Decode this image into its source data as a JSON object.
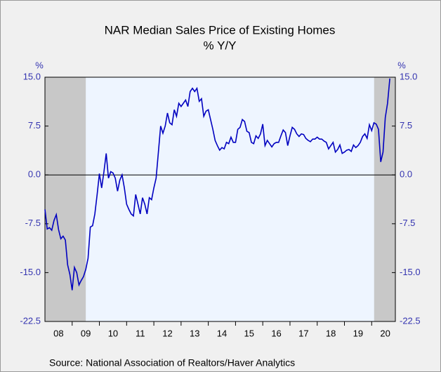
{
  "chart_data": {
    "type": "line",
    "title": "NAR Median Sales Price of Existing Homes",
    "subtitle": "% Y/Y",
    "y_unit": "%",
    "source": "Source:  National Association of Realtors/Haver Analytics",
    "color": "#0000c0",
    "x": [
      2008,
      2008.083,
      2008.167,
      2008.25,
      2008.333,
      2008.417,
      2008.5,
      2008.583,
      2008.667,
      2008.75,
      2008.833,
      2008.917,
      2009,
      2009.083,
      2009.167,
      2009.25,
      2009.333,
      2009.417,
      2009.5,
      2009.583,
      2009.667,
      2009.75,
      2009.833,
      2009.917,
      2010,
      2010.083,
      2010.167,
      2010.25,
      2010.333,
      2010.417,
      2010.5,
      2010.583,
      2010.667,
      2010.75,
      2010.833,
      2010.917,
      2011,
      2011.083,
      2011.167,
      2011.25,
      2011.333,
      2011.417,
      2011.5,
      2011.583,
      2011.667,
      2011.75,
      2011.833,
      2011.917,
      2012,
      2012.083,
      2012.167,
      2012.25,
      2012.333,
      2012.417,
      2012.5,
      2012.583,
      2012.667,
      2012.75,
      2012.833,
      2012.917,
      2013,
      2013.083,
      2013.167,
      2013.25,
      2013.333,
      2013.417,
      2013.5,
      2013.583,
      2013.667,
      2013.75,
      2013.833,
      2013.917,
      2014,
      2014.083,
      2014.167,
      2014.25,
      2014.333,
      2014.417,
      2014.5,
      2014.583,
      2014.667,
      2014.75,
      2014.833,
      2014.917,
      2015,
      2015.083,
      2015.167,
      2015.25,
      2015.333,
      2015.417,
      2015.5,
      2015.583,
      2015.667,
      2015.75,
      2015.833,
      2015.917,
      2016,
      2016.083,
      2016.167,
      2016.25,
      2016.333,
      2016.417,
      2016.5,
      2016.583,
      2016.667,
      2016.75,
      2016.833,
      2016.917,
      2017,
      2017.083,
      2017.167,
      2017.25,
      2017.333,
      2017.417,
      2017.5,
      2017.583,
      2017.667,
      2017.75,
      2017.833,
      2017.917,
      2018,
      2018.083,
      2018.167,
      2018.25,
      2018.333,
      2018.417,
      2018.5,
      2018.583,
      2018.667,
      2018.75,
      2018.833,
      2018.917,
      2019,
      2019.083,
      2019.167,
      2019.25,
      2019.333,
      2019.417,
      2019.5,
      2019.583,
      2019.667,
      2019.75,
      2019.833,
      2019.917,
      2020,
      2020.083,
      2020.167,
      2020.25,
      2020.333,
      2020.417,
      2020.5,
      2020.583,
      2020.667
    ],
    "values": [
      -5.3,
      -8.3,
      -8.1,
      -8.5,
      -7.0,
      -6.1,
      -8.4,
      -9.8,
      -9.4,
      -10.0,
      -13.8,
      -15.3,
      -17.7,
      -14.2,
      -15.0,
      -16.9,
      -16.2,
      -15.6,
      -14.5,
      -12.8,
      -8.0,
      -7.8,
      -6.0,
      -3.0,
      0.2,
      -2.0,
      0.5,
      3.3,
      -0.5,
      0.5,
      0.3,
      -0.5,
      -2.5,
      -0.8,
      0.0,
      -2.0,
      -4.5,
      -5.3,
      -6.0,
      -6.3,
      -3.0,
      -4.5,
      -6.0,
      -3.5,
      -4.5,
      -6.0,
      -3.5,
      -3.8,
      -2.0,
      -0.5,
      3.5,
      7.5,
      6.4,
      7.5,
      9.5,
      8.0,
      7.7,
      10.0,
      9.0,
      11.0,
      10.5,
      11.0,
      11.5,
      10.5,
      12.8,
      13.3,
      12.8,
      13.3,
      11.3,
      11.7,
      9.0,
      9.8,
      10.0,
      8.5,
      7.0,
      5.3,
      4.5,
      3.8,
      4.2,
      4.0,
      5.0,
      4.8,
      5.8,
      5.0,
      5.0,
      7.0,
      7.3,
      8.5,
      8.2,
      6.7,
      6.5,
      5.0,
      4.8,
      6.0,
      5.6,
      6.3,
      7.8,
      4.5,
      5.3,
      4.8,
      4.3,
      4.8,
      5.0,
      5.0,
      6.0,
      6.9,
      6.5,
      4.5,
      6.0,
      7.3,
      7.0,
      6.3,
      5.9,
      6.3,
      6.2,
      5.6,
      5.3,
      5.1,
      5.5,
      5.5,
      5.8,
      5.5,
      5.5,
      5.2,
      5.0,
      4.0,
      4.5,
      5.0,
      3.5,
      3.9,
      4.6,
      3.3,
      3.5,
      3.8,
      3.9,
      3.6,
      4.6,
      4.2,
      4.5,
      5.0,
      5.9,
      6.3,
      5.6,
      7.7,
      6.8,
      8.0,
      7.8,
      7.0,
      2.0,
      3.5,
      8.8,
      11.0,
      14.8
    ],
    "xlim": [
      2008,
      2020.87
    ],
    "xticks": [
      {
        "value": 2008.5,
        "label": "08"
      },
      {
        "value": 2009.5,
        "label": "09"
      },
      {
        "value": 2010.5,
        "label": "10"
      },
      {
        "value": 2011.5,
        "label": "11"
      },
      {
        "value": 2012.5,
        "label": "12"
      },
      {
        "value": 2013.5,
        "label": "13"
      },
      {
        "value": 2014.5,
        "label": "14"
      },
      {
        "value": 2015.5,
        "label": "15"
      },
      {
        "value": 2016.5,
        "label": "16"
      },
      {
        "value": 2017.5,
        "label": "17"
      },
      {
        "value": 2018.5,
        "label": "18"
      },
      {
        "value": 2019.5,
        "label": "19"
      },
      {
        "value": 2020.5,
        "label": "20"
      }
    ],
    "xminor_ticks": [
      2009,
      2010,
      2011,
      2012,
      2013,
      2014,
      2015,
      2016,
      2017,
      2018,
      2019,
      2020
    ],
    "ylim": [
      -22.5,
      15
    ],
    "yticks": [
      {
        "value": 15,
        "label": "15.0"
      },
      7.5,
      {
        "value": 0,
        "label": "0.0"
      },
      -7.5,
      {
        "value": -15,
        "label": "-15.0"
      },
      -22.5
    ],
    "zero_line": 0,
    "shaded_ranges": [
      [
        2008,
        2009.5
      ],
      [
        2020.09,
        2020.87
      ]
    ]
  }
}
